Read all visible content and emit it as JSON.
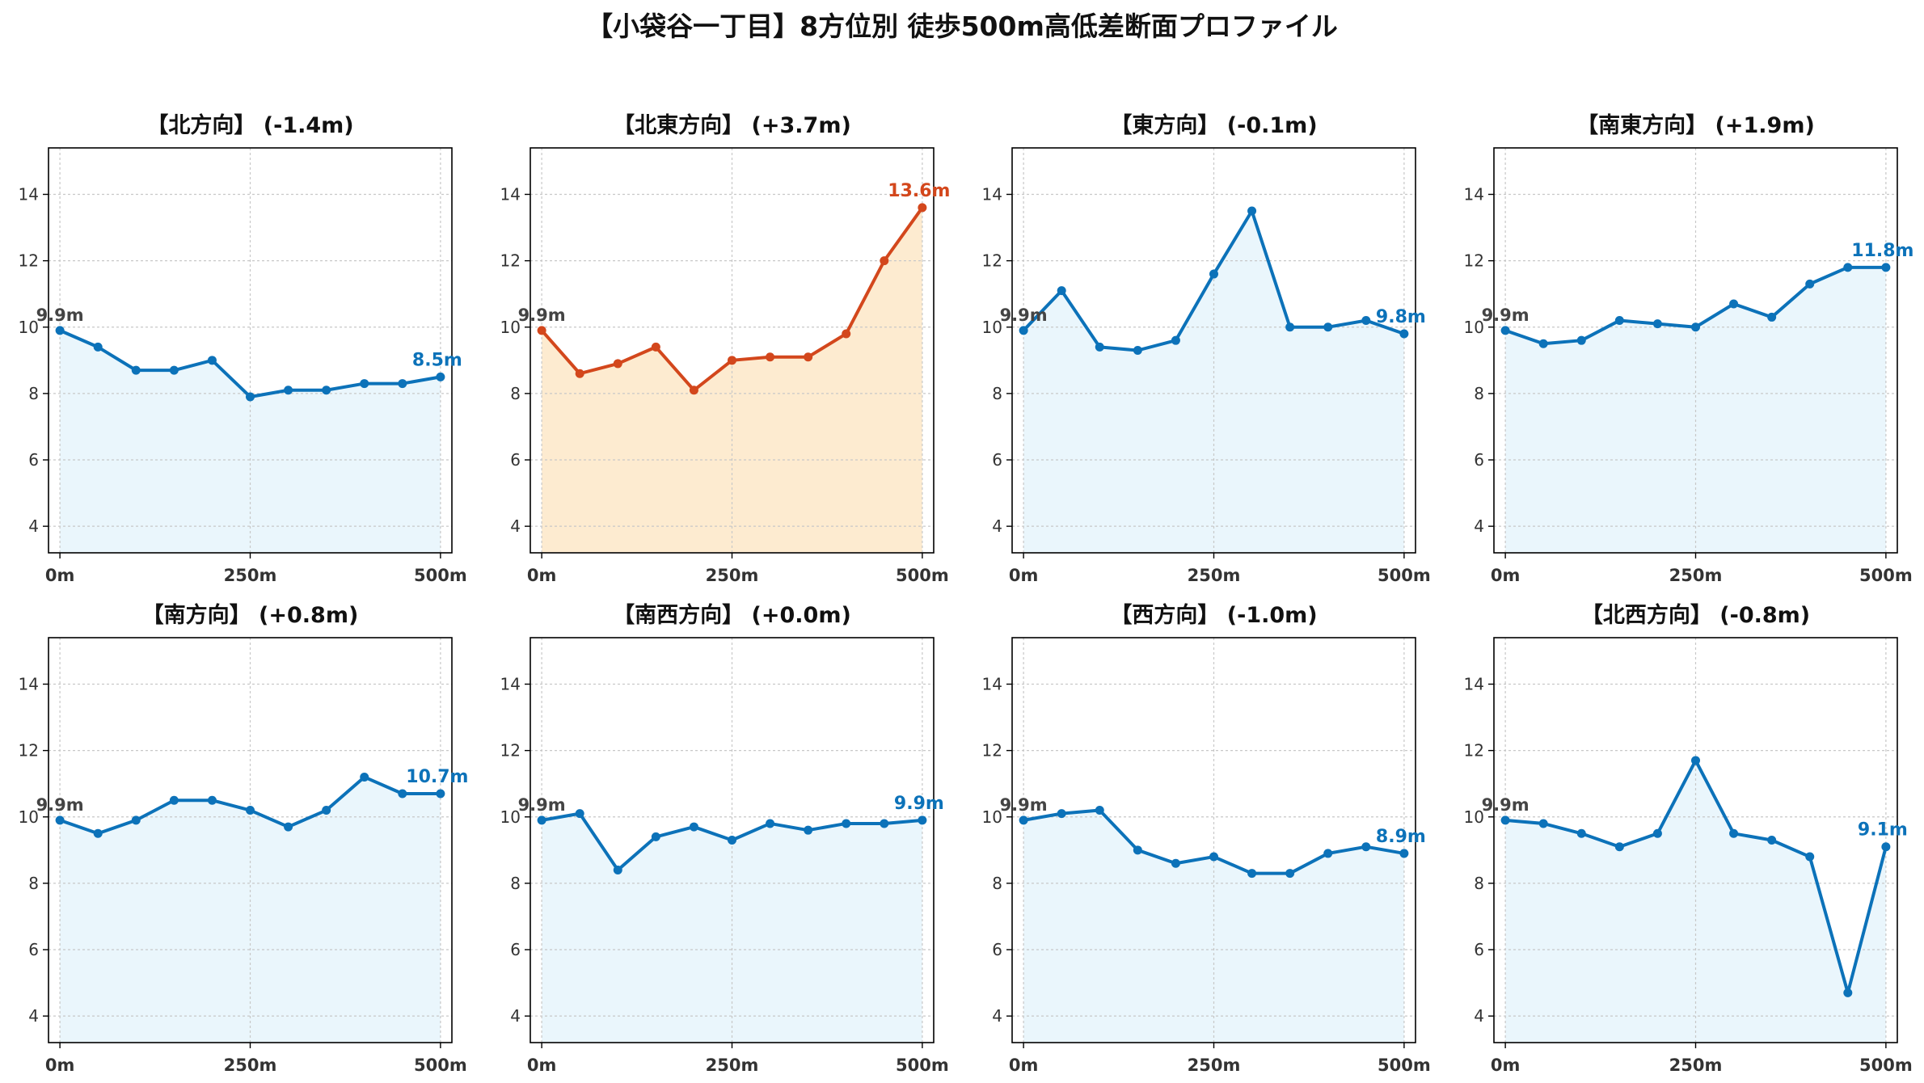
{
  "figure_title": "【小袋谷一丁目】8方位別 徒歩500m高低差断面プロファイル",
  "colors": {
    "normal_line": "#0c72b9",
    "normal_fill": "#eaf6fc",
    "highlight_line": "#d3471c",
    "highlight_fill": "#fdebd0",
    "start_label": "#444444"
  },
  "chart_data": [
    {
      "type": "area",
      "title": "【北方向】 (-1.4m)",
      "x": [
        0,
        50,
        100,
        150,
        200,
        250,
        300,
        350,
        400,
        450,
        500
      ],
      "values": [
        9.9,
        9.4,
        8.7,
        8.7,
        9.0,
        7.9,
        8.1,
        8.1,
        8.3,
        8.3,
        8.5
      ],
      "start_label": "9.9m",
      "end_label": "8.5m",
      "highlight": false
    },
    {
      "type": "area",
      "title": "【北東方向】 (+3.7m)",
      "x": [
        0,
        50,
        100,
        150,
        200,
        250,
        300,
        350,
        400,
        450,
        500
      ],
      "values": [
        9.9,
        8.6,
        8.9,
        9.4,
        8.1,
        9.0,
        9.1,
        9.1,
        9.8,
        12.0,
        13.6
      ],
      "start_label": "9.9m",
      "end_label": "13.6m",
      "highlight": true
    },
    {
      "type": "area",
      "title": "【東方向】 (-0.1m)",
      "x": [
        0,
        50,
        100,
        150,
        200,
        250,
        300,
        350,
        400,
        450,
        500
      ],
      "values": [
        9.9,
        11.1,
        9.4,
        9.3,
        9.6,
        11.6,
        13.5,
        10.0,
        10.0,
        10.2,
        9.8
      ],
      "start_label": "9.9m",
      "end_label": "9.8m",
      "highlight": false
    },
    {
      "type": "area",
      "title": "【南東方向】 (+1.9m)",
      "x": [
        0,
        50,
        100,
        150,
        200,
        250,
        300,
        350,
        400,
        450,
        500
      ],
      "values": [
        9.9,
        9.5,
        9.6,
        10.2,
        10.1,
        10.0,
        10.7,
        10.3,
        11.3,
        11.8,
        11.8
      ],
      "start_label": "9.9m",
      "end_label": "11.8m",
      "highlight": false
    },
    {
      "type": "area",
      "title": "【南方向】 (+0.8m)",
      "x": [
        0,
        50,
        100,
        150,
        200,
        250,
        300,
        350,
        400,
        450,
        500
      ],
      "values": [
        9.9,
        9.5,
        9.9,
        10.5,
        10.5,
        10.2,
        9.7,
        10.2,
        11.2,
        10.7,
        10.7
      ],
      "start_label": "9.9m",
      "end_label": "10.7m",
      "highlight": false
    },
    {
      "type": "area",
      "title": "【南西方向】 (+0.0m)",
      "x": [
        0,
        50,
        100,
        150,
        200,
        250,
        300,
        350,
        400,
        450,
        500
      ],
      "values": [
        9.9,
        10.1,
        8.4,
        9.4,
        9.7,
        9.3,
        9.8,
        9.6,
        9.8,
        9.8,
        9.9
      ],
      "start_label": "9.9m",
      "end_label": "9.9m",
      "highlight": false
    },
    {
      "type": "area",
      "title": "【西方向】 (-1.0m)",
      "x": [
        0,
        50,
        100,
        150,
        200,
        250,
        300,
        350,
        400,
        450,
        500
      ],
      "values": [
        9.9,
        10.1,
        10.2,
        9.0,
        8.6,
        8.8,
        8.3,
        8.3,
        8.9,
        9.1,
        8.9
      ],
      "start_label": "9.9m",
      "end_label": "8.9m",
      "highlight": false
    },
    {
      "type": "area",
      "title": "【北西方向】 (-0.8m)",
      "x": [
        0,
        50,
        100,
        150,
        200,
        250,
        300,
        350,
        400,
        450,
        500
      ],
      "values": [
        9.9,
        9.8,
        9.5,
        9.1,
        9.5,
        11.7,
        9.5,
        9.3,
        8.8,
        4.7,
        9.1
      ],
      "start_label": "9.9m",
      "end_label": "9.1m",
      "highlight": false
    }
  ],
  "axes": {
    "xlim": [
      -15,
      515
    ],
    "ylim": [
      3.2,
      15.4
    ],
    "xticks": [
      0,
      250,
      500
    ],
    "xtick_labels": [
      "0m",
      "250m",
      "500m"
    ],
    "yticks": [
      4,
      6,
      8,
      10,
      12,
      14
    ],
    "ytick_labels": [
      "4",
      "6",
      "8",
      "10",
      "12",
      "14"
    ],
    "grid": true
  }
}
